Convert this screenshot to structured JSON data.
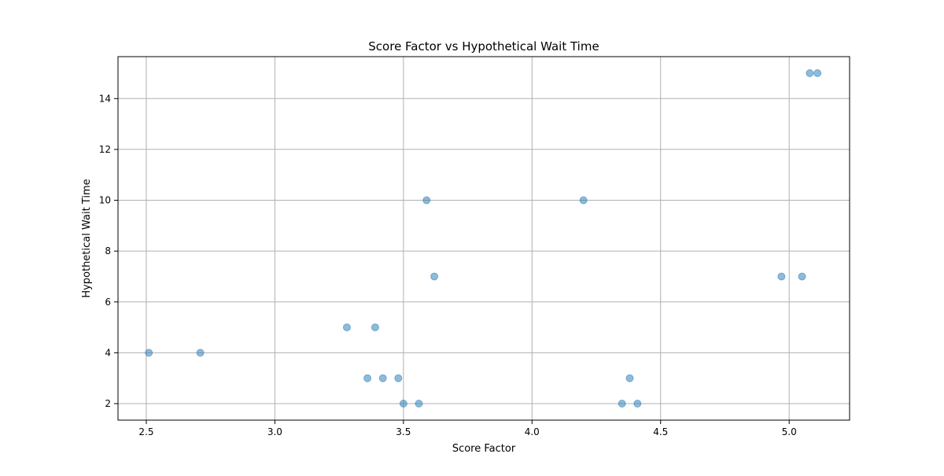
{
  "chart_data": {
    "type": "scatter",
    "title": "Score Factor vs Hypothetical Wait Time",
    "xlabel": "Score Factor",
    "ylabel": "Hypothetical Wait Time",
    "xlim": [
      2.39,
      5.235
    ],
    "ylim": [
      1.35,
      15.65
    ],
    "xticks": [
      2.5,
      3.0,
      3.5,
      4.0,
      4.5,
      5.0
    ],
    "xtick_labels": [
      "2.5",
      "3.0",
      "3.5",
      "4.0",
      "4.5",
      "5.0"
    ],
    "yticks": [
      2,
      4,
      6,
      8,
      10,
      12,
      14
    ],
    "ytick_labels": [
      "2",
      "4",
      "6",
      "8",
      "10",
      "12",
      "14"
    ],
    "grid": true,
    "marker_color": "#1f77b4",
    "marker_alpha": 0.5,
    "points": [
      {
        "x": 2.51,
        "y": 4
      },
      {
        "x": 2.71,
        "y": 4
      },
      {
        "x": 3.28,
        "y": 5
      },
      {
        "x": 3.39,
        "y": 5
      },
      {
        "x": 3.36,
        "y": 3
      },
      {
        "x": 3.42,
        "y": 3
      },
      {
        "x": 3.48,
        "y": 3
      },
      {
        "x": 3.5,
        "y": 2
      },
      {
        "x": 3.56,
        "y": 2
      },
      {
        "x": 3.59,
        "y": 10
      },
      {
        "x": 3.62,
        "y": 7
      },
      {
        "x": 4.2,
        "y": 10
      },
      {
        "x": 4.35,
        "y": 2
      },
      {
        "x": 4.38,
        "y": 3
      },
      {
        "x": 4.41,
        "y": 2
      },
      {
        "x": 4.97,
        "y": 7
      },
      {
        "x": 5.05,
        "y": 7
      },
      {
        "x": 5.08,
        "y": 15
      },
      {
        "x": 5.11,
        "y": 15
      }
    ]
  }
}
